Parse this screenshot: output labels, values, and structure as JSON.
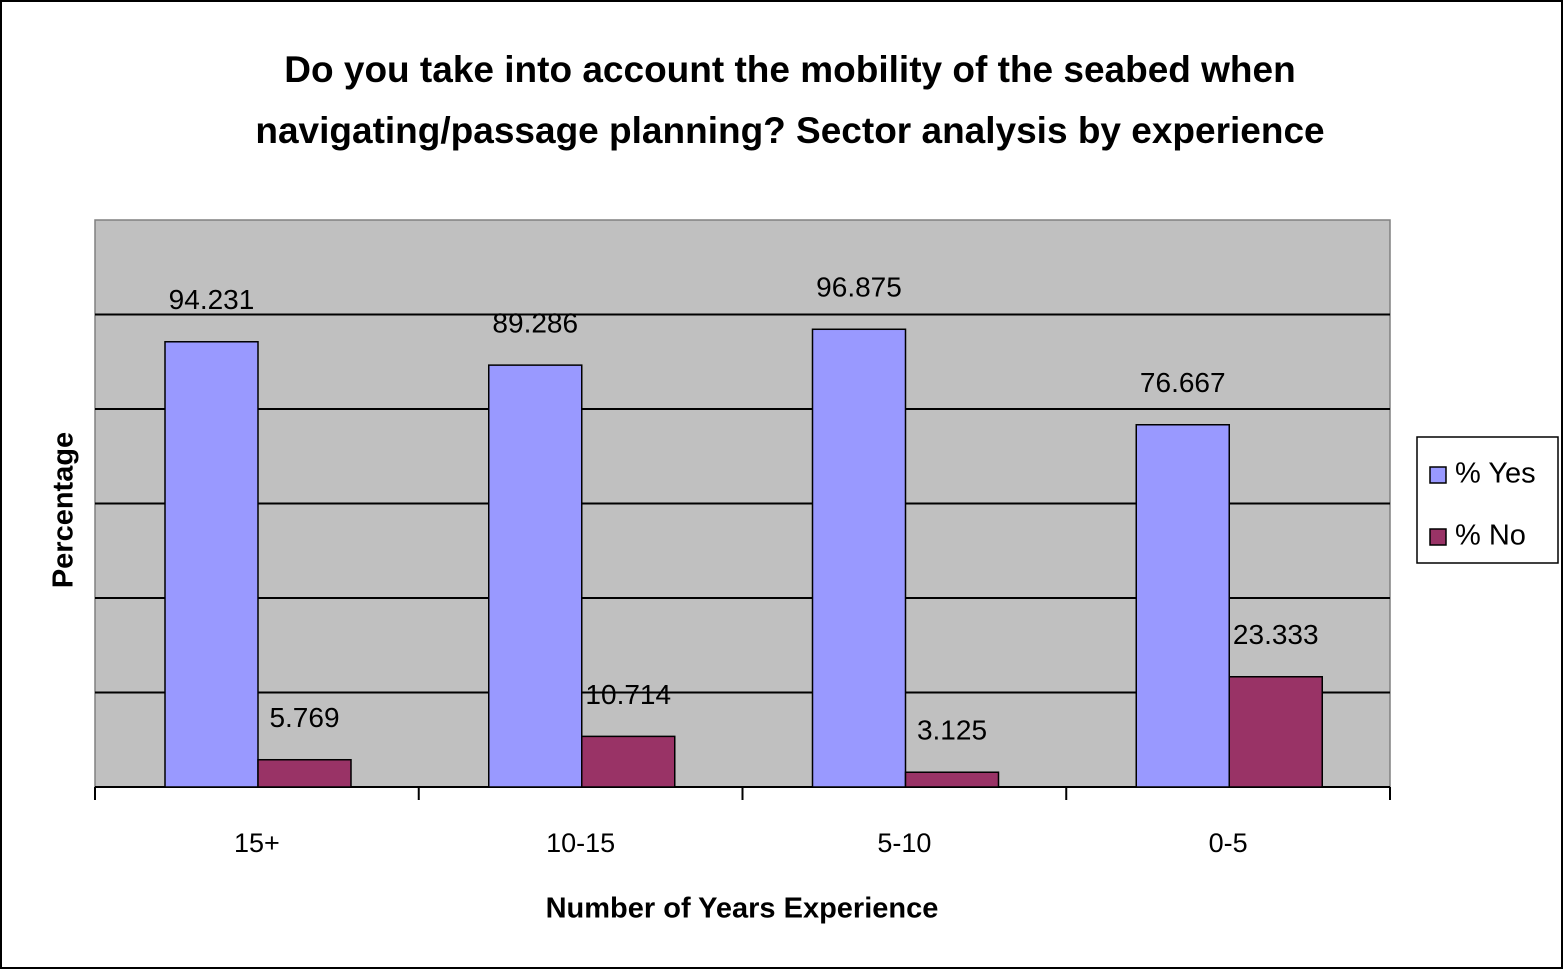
{
  "chart_data": {
    "type": "bar",
    "title": [
      "Do you take into account the mobility of the seabed when",
      "navigating/passage planning? Sector analysis by experience"
    ],
    "x_label": "Number of Years Experience",
    "y_label": "Percentage",
    "categories": [
      "15+",
      "10-15",
      "5-10",
      "0-5"
    ],
    "series": [
      {
        "name": "% Yes",
        "color": "#9999ff",
        "values": [
          94.231,
          89.286,
          96.875,
          76.667
        ]
      },
      {
        "name": "% No",
        "color": "#993366",
        "values": [
          5.769,
          10.714,
          3.125,
          23.333
        ]
      }
    ],
    "ylim": [
      0,
      120
    ],
    "yticks": [
      0,
      20,
      40,
      60,
      80,
      100
    ],
    "show_ytick_labels": false,
    "grid": true,
    "legend": "right",
    "plot_background": "#c0c0c0"
  }
}
